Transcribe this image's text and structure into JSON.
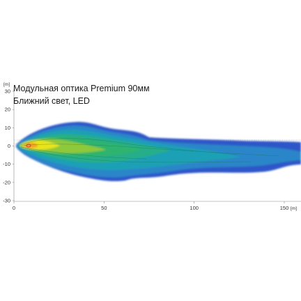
{
  "chart_data": {
    "type": "heatmap",
    "title": "Модульная оптика Premium 90мм",
    "subtitle": "Ближний свет, LED",
    "x_unit": "[m]",
    "y_unit": "[m]",
    "x_ticks": [
      "0",
      "50",
      "100",
      "150"
    ],
    "y_ticks": [
      "30",
      "20",
      "10",
      "0",
      "-10",
      "-20",
      "-30"
    ],
    "x_range": [
      0,
      158
    ],
    "y_range": [
      -30,
      30
    ],
    "grid": "dotted horizontal lines near 0 m",
    "light_source_x_m": 8,
    "beam_extent_x_m": 158,
    "beam_extent_y_m": [
      -19,
      16
    ],
    "colors": {
      "outer": "#2d57c8",
      "mid": "#1fa0b6",
      "inner": "#2fb46e",
      "core": "#e8e41e",
      "hot": "#e23a2a"
    }
  }
}
